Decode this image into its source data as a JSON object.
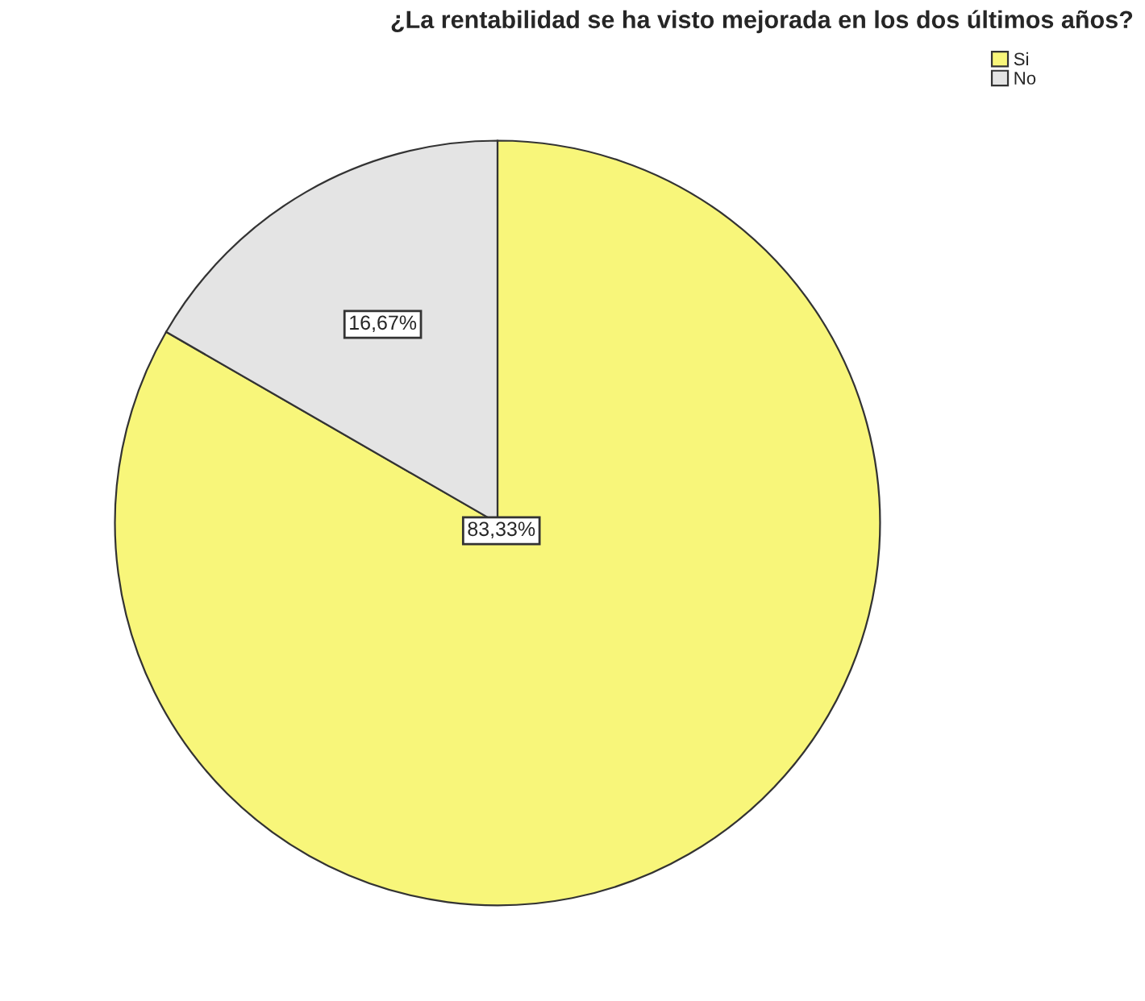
{
  "chart_data": {
    "type": "pie",
    "title": "¿La rentabilidad se ha visto mejorada en los dos últimos años?",
    "categories": [
      "Si",
      "No"
    ],
    "values": [
      83.33,
      16.67
    ],
    "colors": [
      "#f8f67a",
      "#e4e4e4"
    ],
    "value_labels": [
      "83,33%",
      "16,67%"
    ],
    "legend": "top right"
  }
}
